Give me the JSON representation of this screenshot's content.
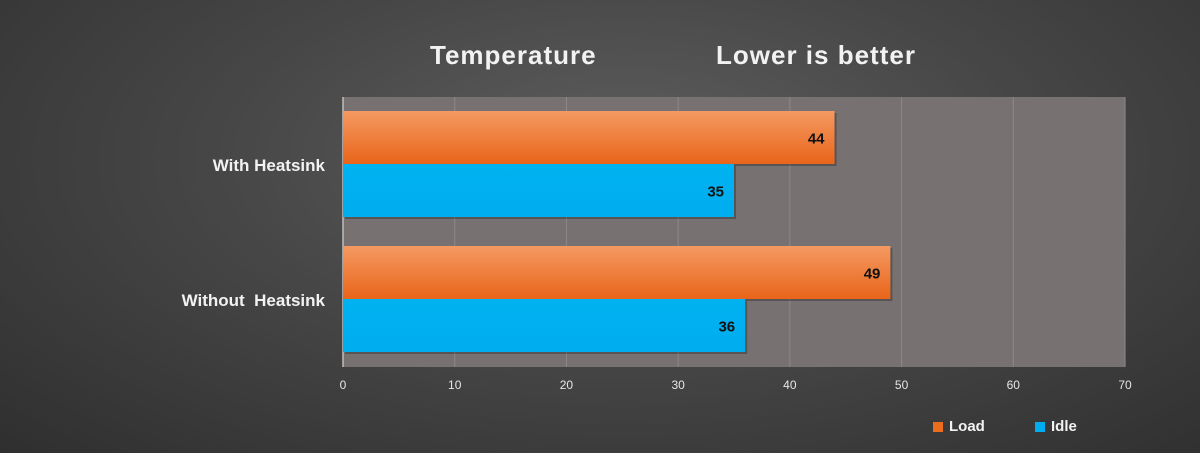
{
  "chart_data": {
    "type": "bar",
    "orientation": "horizontal",
    "title": "Temperature",
    "subtitle": "Lower is better",
    "categories": [
      "With Heatsink",
      "Without  Heatsink"
    ],
    "series": [
      {
        "name": "Load",
        "values": [
          44,
          49
        ],
        "color": "#ec6d1e"
      },
      {
        "name": "Idle",
        "values": [
          35,
          36
        ],
        "color": "#00aeef"
      }
    ],
    "xlim": [
      0,
      70
    ],
    "xticks": [
      "0",
      "10",
      "20",
      "30",
      "40",
      "50",
      "60",
      "70"
    ],
    "grid": true,
    "legend": "bottom-right",
    "plot_background": "#777171"
  }
}
